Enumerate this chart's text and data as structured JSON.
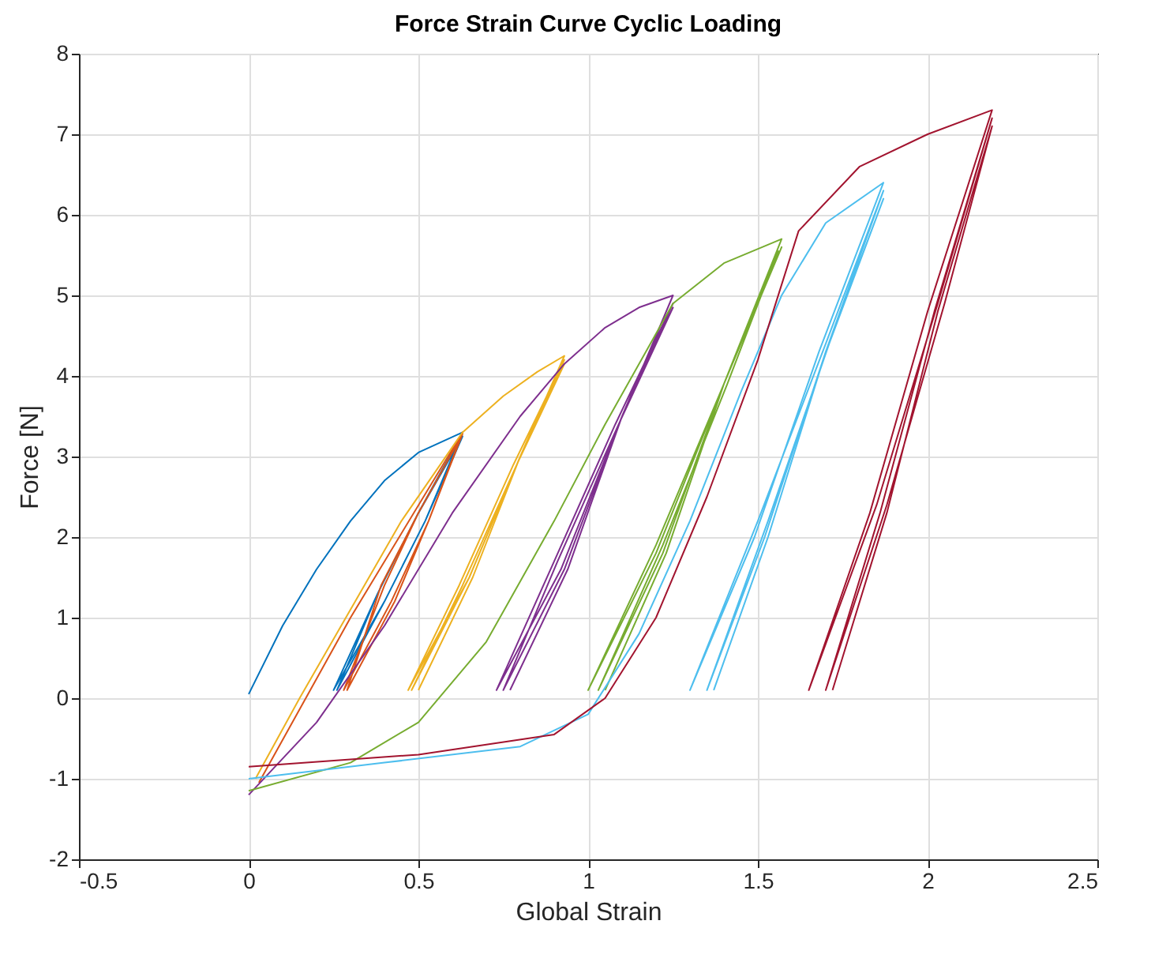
{
  "chart_data": {
    "type": "line",
    "title": "Force Strain Curve Cyclic Loading",
    "xlabel": "Global Strain",
    "ylabel": "Force [N]",
    "xlim": [
      -0.5,
      2.5
    ],
    "xticks": [
      -0.5,
      0,
      0.5,
      1,
      1.5,
      2,
      2.5
    ],
    "ylim": [
      -2,
      8
    ],
    "yticks": [
      -2,
      -1,
      0,
      1,
      2,
      3,
      4,
      5,
      6,
      7,
      8
    ],
    "grid": true,
    "marker": "none",
    "line_style": "solid",
    "series": [
      {
        "color": "#0072bd",
        "x": [
          0,
          0.1,
          0.2,
          0.3,
          0.4,
          0.5,
          0.63,
          0.5,
          0.38,
          0.25,
          0.4,
          0.52,
          0.63,
          0.5,
          0.38,
          0.26,
          0.4,
          0.52,
          0.62
        ],
        "values": [
          0.05,
          0.9,
          1.6,
          2.2,
          2.7,
          3.05,
          3.3,
          2.3,
          1.3,
          0.1,
          1.2,
          2.2,
          3.25,
          2.3,
          1.3,
          0.1,
          1.2,
          2.2,
          3.2
        ]
      },
      {
        "color": "#d95319",
        "x": [
          0.62,
          0.5,
          0.4,
          0.28,
          0.42,
          0.53,
          0.63,
          0.5,
          0.39,
          0.29,
          0.43,
          0.53,
          0.63,
          0.3,
          0.03
        ],
        "values": [
          3.2,
          2.3,
          1.4,
          0.1,
          1.2,
          2.2,
          3.28,
          2.3,
          1.4,
          0.1,
          1.2,
          2.2,
          3.3,
          1.0,
          -1.05
        ]
      },
      {
        "color": "#edb120",
        "x": [
          0.02,
          0.15,
          0.3,
          0.45,
          0.63,
          0.75,
          0.85,
          0.93,
          0.8,
          0.65,
          0.47,
          0.62,
          0.78,
          0.93,
          0.8,
          0.65,
          0.48,
          0.63,
          0.79,
          0.93,
          0.8,
          0.66,
          0.5
        ],
        "values": [
          -1.0,
          0.0,
          1.1,
          2.2,
          3.3,
          3.75,
          4.05,
          4.25,
          3.0,
          1.5,
          0.1,
          1.4,
          2.9,
          4.2,
          3.0,
          1.5,
          0.1,
          1.4,
          2.9,
          4.15,
          3.0,
          1.5,
          0.1
        ]
      },
      {
        "color": "#7e2f8e",
        "x": [
          0,
          0.2,
          0.4,
          0.6,
          0.8,
          0.93,
          1.05,
          1.15,
          1.25,
          1.1,
          0.92,
          0.73,
          0.9,
          1.08,
          1.25,
          1.1,
          0.93,
          0.75,
          0.91,
          1.09,
          1.25,
          1.1,
          0.94,
          0.77
        ],
        "values": [
          -1.2,
          -0.3,
          0.9,
          2.3,
          3.5,
          4.15,
          4.6,
          4.85,
          5.0,
          3.5,
          1.6,
          0.1,
          1.7,
          3.4,
          4.9,
          3.5,
          1.6,
          0.1,
          1.7,
          3.4,
          4.85,
          3.5,
          1.6,
          0.1
        ]
      },
      {
        "color": "#77ac30",
        "x": [
          0,
          0.3,
          0.5,
          0.7,
          0.9,
          1.05,
          1.25,
          1.4,
          1.57,
          1.4,
          1.2,
          1.0,
          1.2,
          1.4,
          1.57,
          1.4,
          1.22,
          1.03,
          1.22,
          1.41,
          1.56,
          1.4,
          1.23,
          1.05
        ],
        "values": [
          -1.15,
          -0.8,
          -0.3,
          0.7,
          2.2,
          3.4,
          4.9,
          5.4,
          5.7,
          3.9,
          1.8,
          0.1,
          1.9,
          3.9,
          5.6,
          3.9,
          1.8,
          0.1,
          1.9,
          3.9,
          5.55,
          3.9,
          1.8,
          0.1
        ]
      },
      {
        "color": "#4dbeee",
        "x": [
          0,
          0.4,
          0.8,
          1.0,
          1.15,
          1.3,
          1.45,
          1.57,
          1.7,
          1.87,
          1.68,
          1.49,
          1.3,
          1.5,
          1.7,
          1.87,
          1.7,
          1.52,
          1.35,
          1.53,
          1.71,
          1.87,
          1.7,
          1.53,
          1.37
        ],
        "values": [
          -1.0,
          -0.8,
          -0.6,
          -0.2,
          0.8,
          2.2,
          3.8,
          5.0,
          5.9,
          6.4,
          4.3,
          2.0,
          0.1,
          2.2,
          4.4,
          6.3,
          4.3,
          2.0,
          0.1,
          2.2,
          4.4,
          6.2,
          4.3,
          2.0,
          0.1
        ]
      },
      {
        "color": "#a2142f",
        "x": [
          0,
          0.5,
          0.9,
          1.05,
          1.2,
          1.35,
          1.5,
          1.62,
          1.8,
          2.0,
          2.19,
          2.0,
          1.83,
          1.65,
          1.85,
          2.03,
          2.19,
          2.02,
          1.86,
          1.7,
          1.88,
          2.05,
          2.19,
          2.03,
          1.88,
          1.72
        ],
        "values": [
          -0.85,
          -0.7,
          -0.45,
          0,
          1.0,
          2.5,
          4.2,
          5.8,
          6.6,
          7.0,
          7.3,
          4.8,
          2.3,
          0.1,
          2.4,
          4.9,
          7.2,
          4.8,
          2.3,
          0.1,
          2.4,
          4.9,
          7.1,
          4.8,
          2.3,
          0.1
        ]
      }
    ]
  }
}
